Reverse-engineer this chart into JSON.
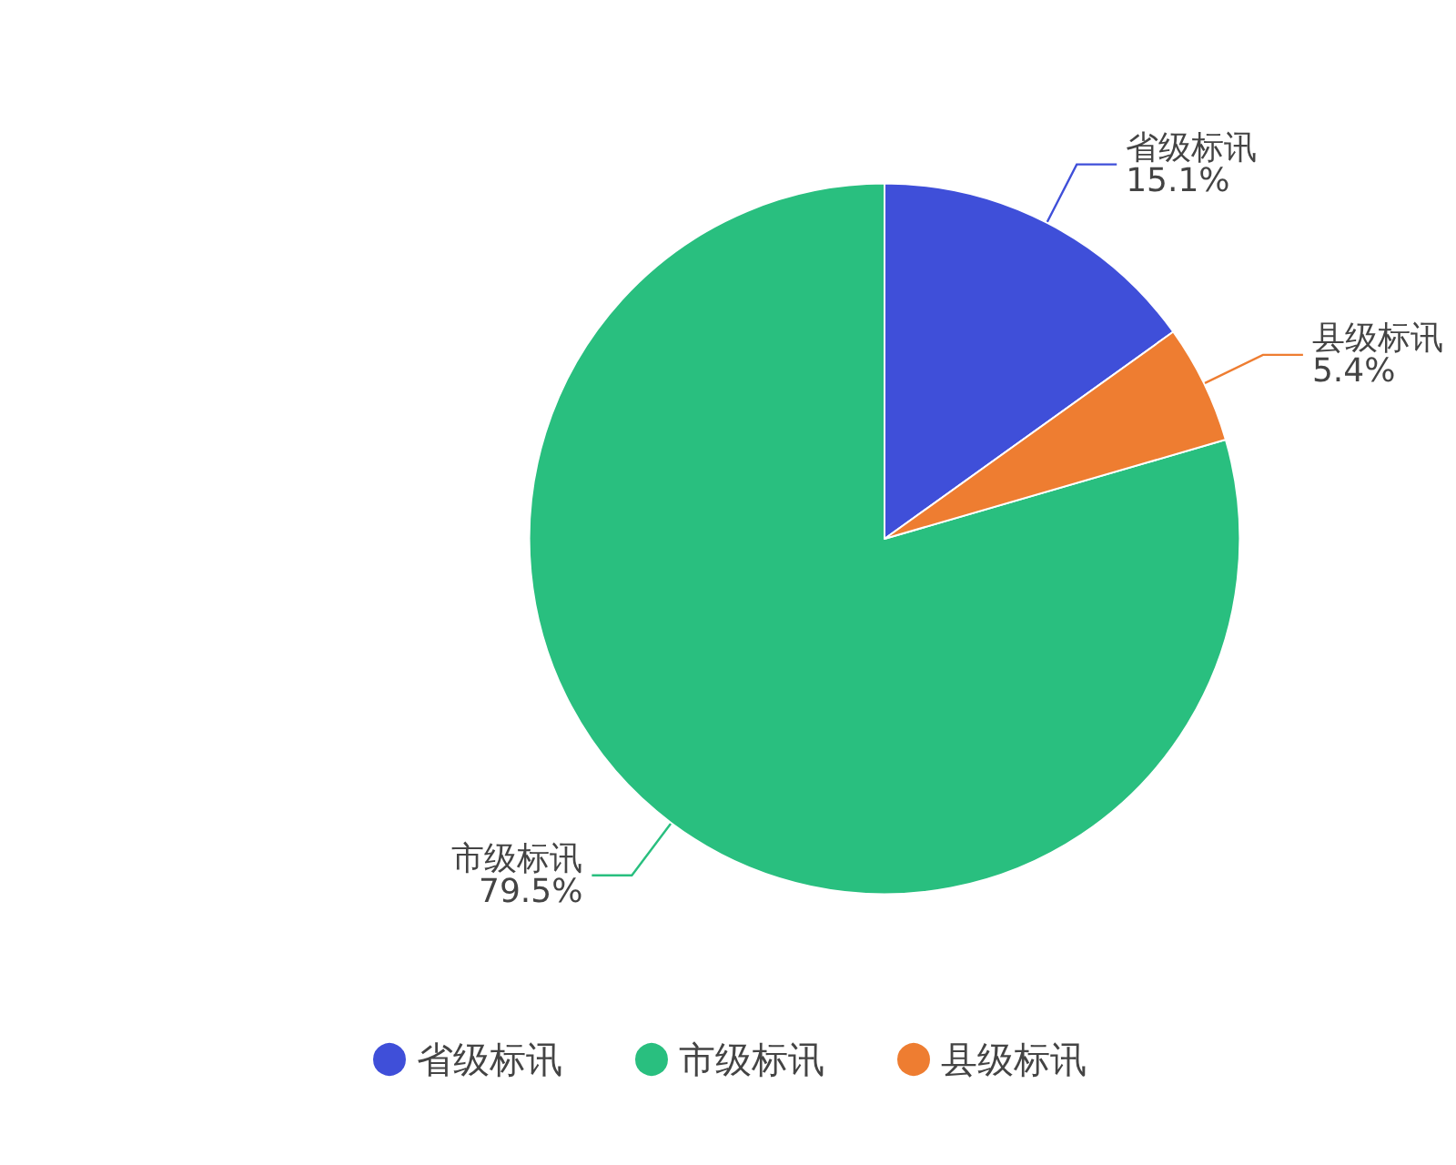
{
  "chart_data": {
    "type": "pie",
    "categories": [
      "省级标讯",
      "市级标讯",
      "县级标讯"
    ],
    "values": [
      15.1,
      79.5,
      5.4
    ],
    "colors": [
      "#3f4fd9",
      "#29bf7f",
      "#ee7d31"
    ],
    "value_labels": [
      "15.1%",
      "79.5%",
      "5.4%"
    ],
    "legend": "bottom"
  }
}
